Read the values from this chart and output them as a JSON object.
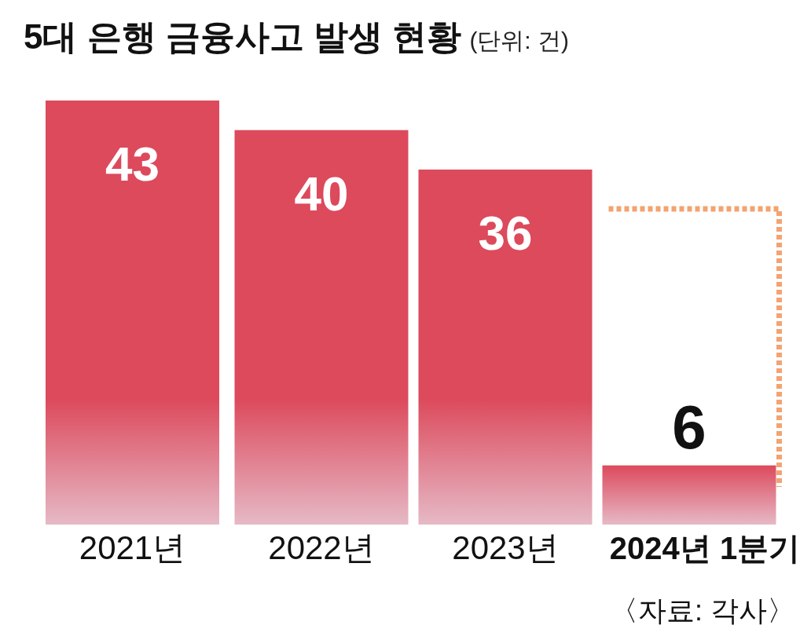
{
  "chart_data": {
    "type": "bar",
    "title": "5대 은행 금융사고 발생 현황",
    "subtitle": "(단위: 건)",
    "categories": [
      "2021년",
      "2022년",
      "2023년",
      "2024년 1분기"
    ],
    "values": [
      43,
      40,
      36,
      6
    ],
    "color": "#dc4a5c",
    "data_labels": true,
    "annotations": [
      "〈자료: 각사〉"
    ]
  }
}
